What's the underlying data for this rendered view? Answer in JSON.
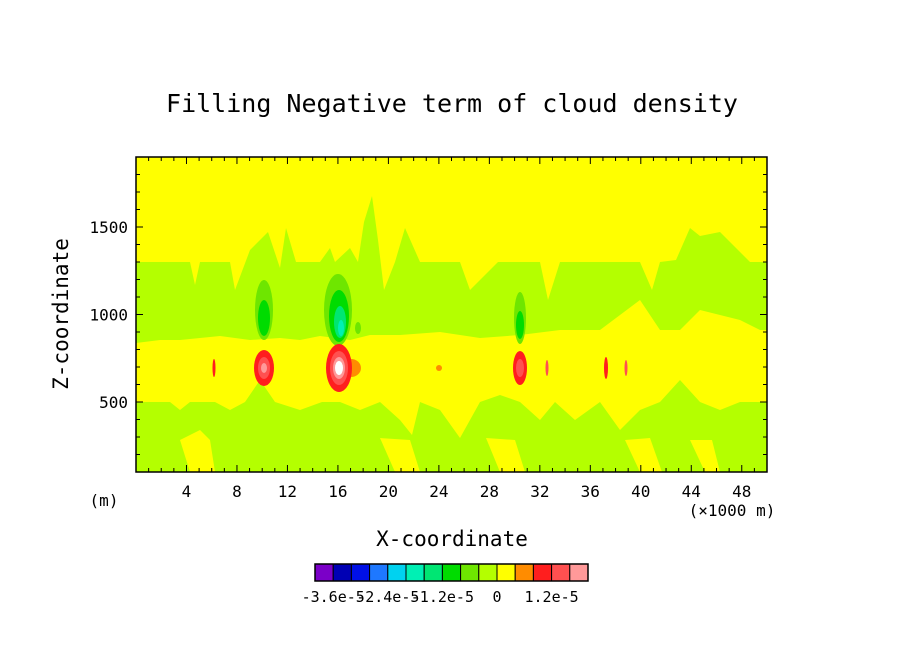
{
  "chart_data": {
    "type": "heatmap",
    "title": "Filling Negative term of cloud density",
    "xlabel": "X-coordinate",
    "ylabel": "Z-coordinate",
    "x_unit_left": "(m)",
    "x_unit_right": "(×1000 m)",
    "xlim": [
      0,
      50
    ],
    "ylim": [
      100,
      1900
    ],
    "x_ticks": [
      4,
      8,
      12,
      16,
      20,
      24,
      28,
      32,
      36,
      40,
      44,
      48
    ],
    "x_tick_labels": [
      "4",
      "8",
      "12",
      "16",
      "20",
      "24",
      "28",
      "32",
      "36",
      "40",
      "44",
      "48"
    ],
    "y_ticks": [
      500,
      1000,
      1500
    ],
    "y_tick_labels": [
      "500",
      "1000",
      "1500"
    ],
    "colorbar": {
      "colors": [
        "#7b00c8",
        "#0000b4",
        "#0010e6",
        "#1e78ff",
        "#00d2f0",
        "#00f0b4",
        "#00e673",
        "#00dc00",
        "#6ee600",
        "#b4ff00",
        "#ffff00",
        "#ff8c00",
        "#ff1e1e",
        "#ff5050",
        "#ff9999"
      ],
      "labels": [
        "-3.6e-5",
        "-2.4e-5",
        "-1.2e-5",
        "0",
        "1.2e-5"
      ],
      "label_boundary_index": [
        1,
        4,
        7,
        10,
        13
      ]
    },
    "background_value": "0 (yellow)",
    "features": [
      {
        "x": 10.2,
        "z": 690,
        "kind": "positive",
        "level": "red"
      },
      {
        "x": 16.0,
        "z": 690,
        "kind": "positive",
        "level": "white"
      },
      {
        "x": 30.5,
        "z": 690,
        "kind": "positive",
        "level": "red"
      },
      {
        "x": 10.0,
        "z": 1050,
        "kind": "negative",
        "level": "green"
      },
      {
        "x": 16.0,
        "z": 1000,
        "kind": "negative",
        "level": "cyan-green"
      },
      {
        "x": 30.4,
        "z": 1020,
        "kind": "negative",
        "level": "green"
      }
    ]
  }
}
